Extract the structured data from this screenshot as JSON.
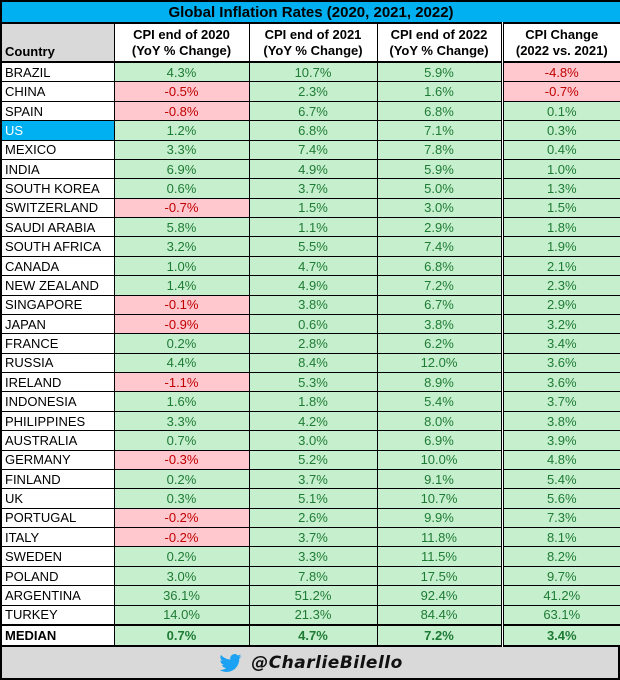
{
  "title": "Global Inflation Rates (2020, 2021, 2022)",
  "header": {
    "country_label": "Country",
    "col_labels": [
      "CPI end of 2020\n(YoY % Change)",
      "CPI end of 2021\n(YoY % Change)",
      "CPI end of 2022\n(YoY % Change)",
      "CPI Change\n(2022 vs. 2021)"
    ]
  },
  "footer": {
    "handle": "@CharlieBilello",
    "icon": "twitter-bird-icon"
  },
  "colors": {
    "accent_cyan": "#00B0F0",
    "positive_bg": "#C6EFCE",
    "positive_text": "#1E7B34",
    "negative_bg": "#FFC7CE",
    "negative_text": "#C00000",
    "header_gray": "#D9D9D9",
    "border": "#000000",
    "twitter_blue": "#1DA1F2"
  },
  "chart_data": {
    "type": "table",
    "title": "Global Inflation Rates (2020, 2021, 2022)",
    "columns": [
      "Country",
      "CPI end of 2020 (YoY % Change)",
      "CPI end of 2021 (YoY % Change)",
      "CPI end of 2022 (YoY % Change)",
      "CPI Change (2022 vs. 2021)"
    ],
    "rows": [
      [
        "BRAZIL",
        4.3,
        10.7,
        5.9,
        -4.8
      ],
      [
        "CHINA",
        -0.5,
        2.3,
        1.6,
        -0.7
      ],
      [
        "SPAIN",
        -0.8,
        6.7,
        6.8,
        0.1
      ],
      [
        "US",
        1.2,
        6.8,
        7.1,
        0.3
      ],
      [
        "MEXICO",
        3.3,
        7.4,
        7.8,
        0.4
      ],
      [
        "INDIA",
        6.9,
        4.9,
        5.9,
        1.0
      ],
      [
        "SOUTH KOREA",
        0.6,
        3.7,
        5.0,
        1.3
      ],
      [
        "SWITZERLAND",
        -0.7,
        1.5,
        3.0,
        1.5
      ],
      [
        "SAUDI ARABIA",
        5.8,
        1.1,
        2.9,
        1.8
      ],
      [
        "SOUTH AFRICA",
        3.2,
        5.5,
        7.4,
        1.9
      ],
      [
        "CANADA",
        1.0,
        4.7,
        6.8,
        2.1
      ],
      [
        "NEW ZEALAND",
        1.4,
        4.9,
        7.2,
        2.3
      ],
      [
        "SINGAPORE",
        -0.1,
        3.8,
        6.7,
        2.9
      ],
      [
        "JAPAN",
        -0.9,
        0.6,
        3.8,
        3.2
      ],
      [
        "FRANCE",
        0.2,
        2.8,
        6.2,
        3.4
      ],
      [
        "RUSSIA",
        4.4,
        8.4,
        12.0,
        3.6
      ],
      [
        "IRELAND",
        -1.1,
        5.3,
        8.9,
        3.6
      ],
      [
        "INDONESIA",
        1.6,
        1.8,
        5.4,
        3.7
      ],
      [
        "PHILIPPINES",
        3.3,
        4.2,
        8.0,
        3.8
      ],
      [
        "AUSTRALIA",
        0.7,
        3.0,
        6.9,
        3.9
      ],
      [
        "GERMANY",
        -0.3,
        5.2,
        10.0,
        4.8
      ],
      [
        "FINLAND",
        0.2,
        3.7,
        9.1,
        5.4
      ],
      [
        "UK",
        0.3,
        5.1,
        10.7,
        5.6
      ],
      [
        "PORTUGAL",
        -0.2,
        2.6,
        9.9,
        7.3
      ],
      [
        "ITALY",
        -0.2,
        3.7,
        11.8,
        8.1
      ],
      [
        "SWEDEN",
        0.2,
        3.3,
        11.5,
        8.2
      ],
      [
        "POLAND",
        3.0,
        7.8,
        17.5,
        9.7
      ],
      [
        "ARGENTINA",
        36.1,
        51.2,
        92.4,
        41.2
      ],
      [
        "TURKEY",
        14.0,
        21.3,
        84.4,
        63.1
      ]
    ],
    "median_row": [
      "MEDIAN",
      0.7,
      4.7,
      7.2,
      3.4
    ],
    "highlighted_country": "US",
    "value_format": "percent_1dp",
    "cell_coloring": "negative values pink fill with red text, positive values green fill with green text",
    "legend_position": "none",
    "grid": true
  }
}
